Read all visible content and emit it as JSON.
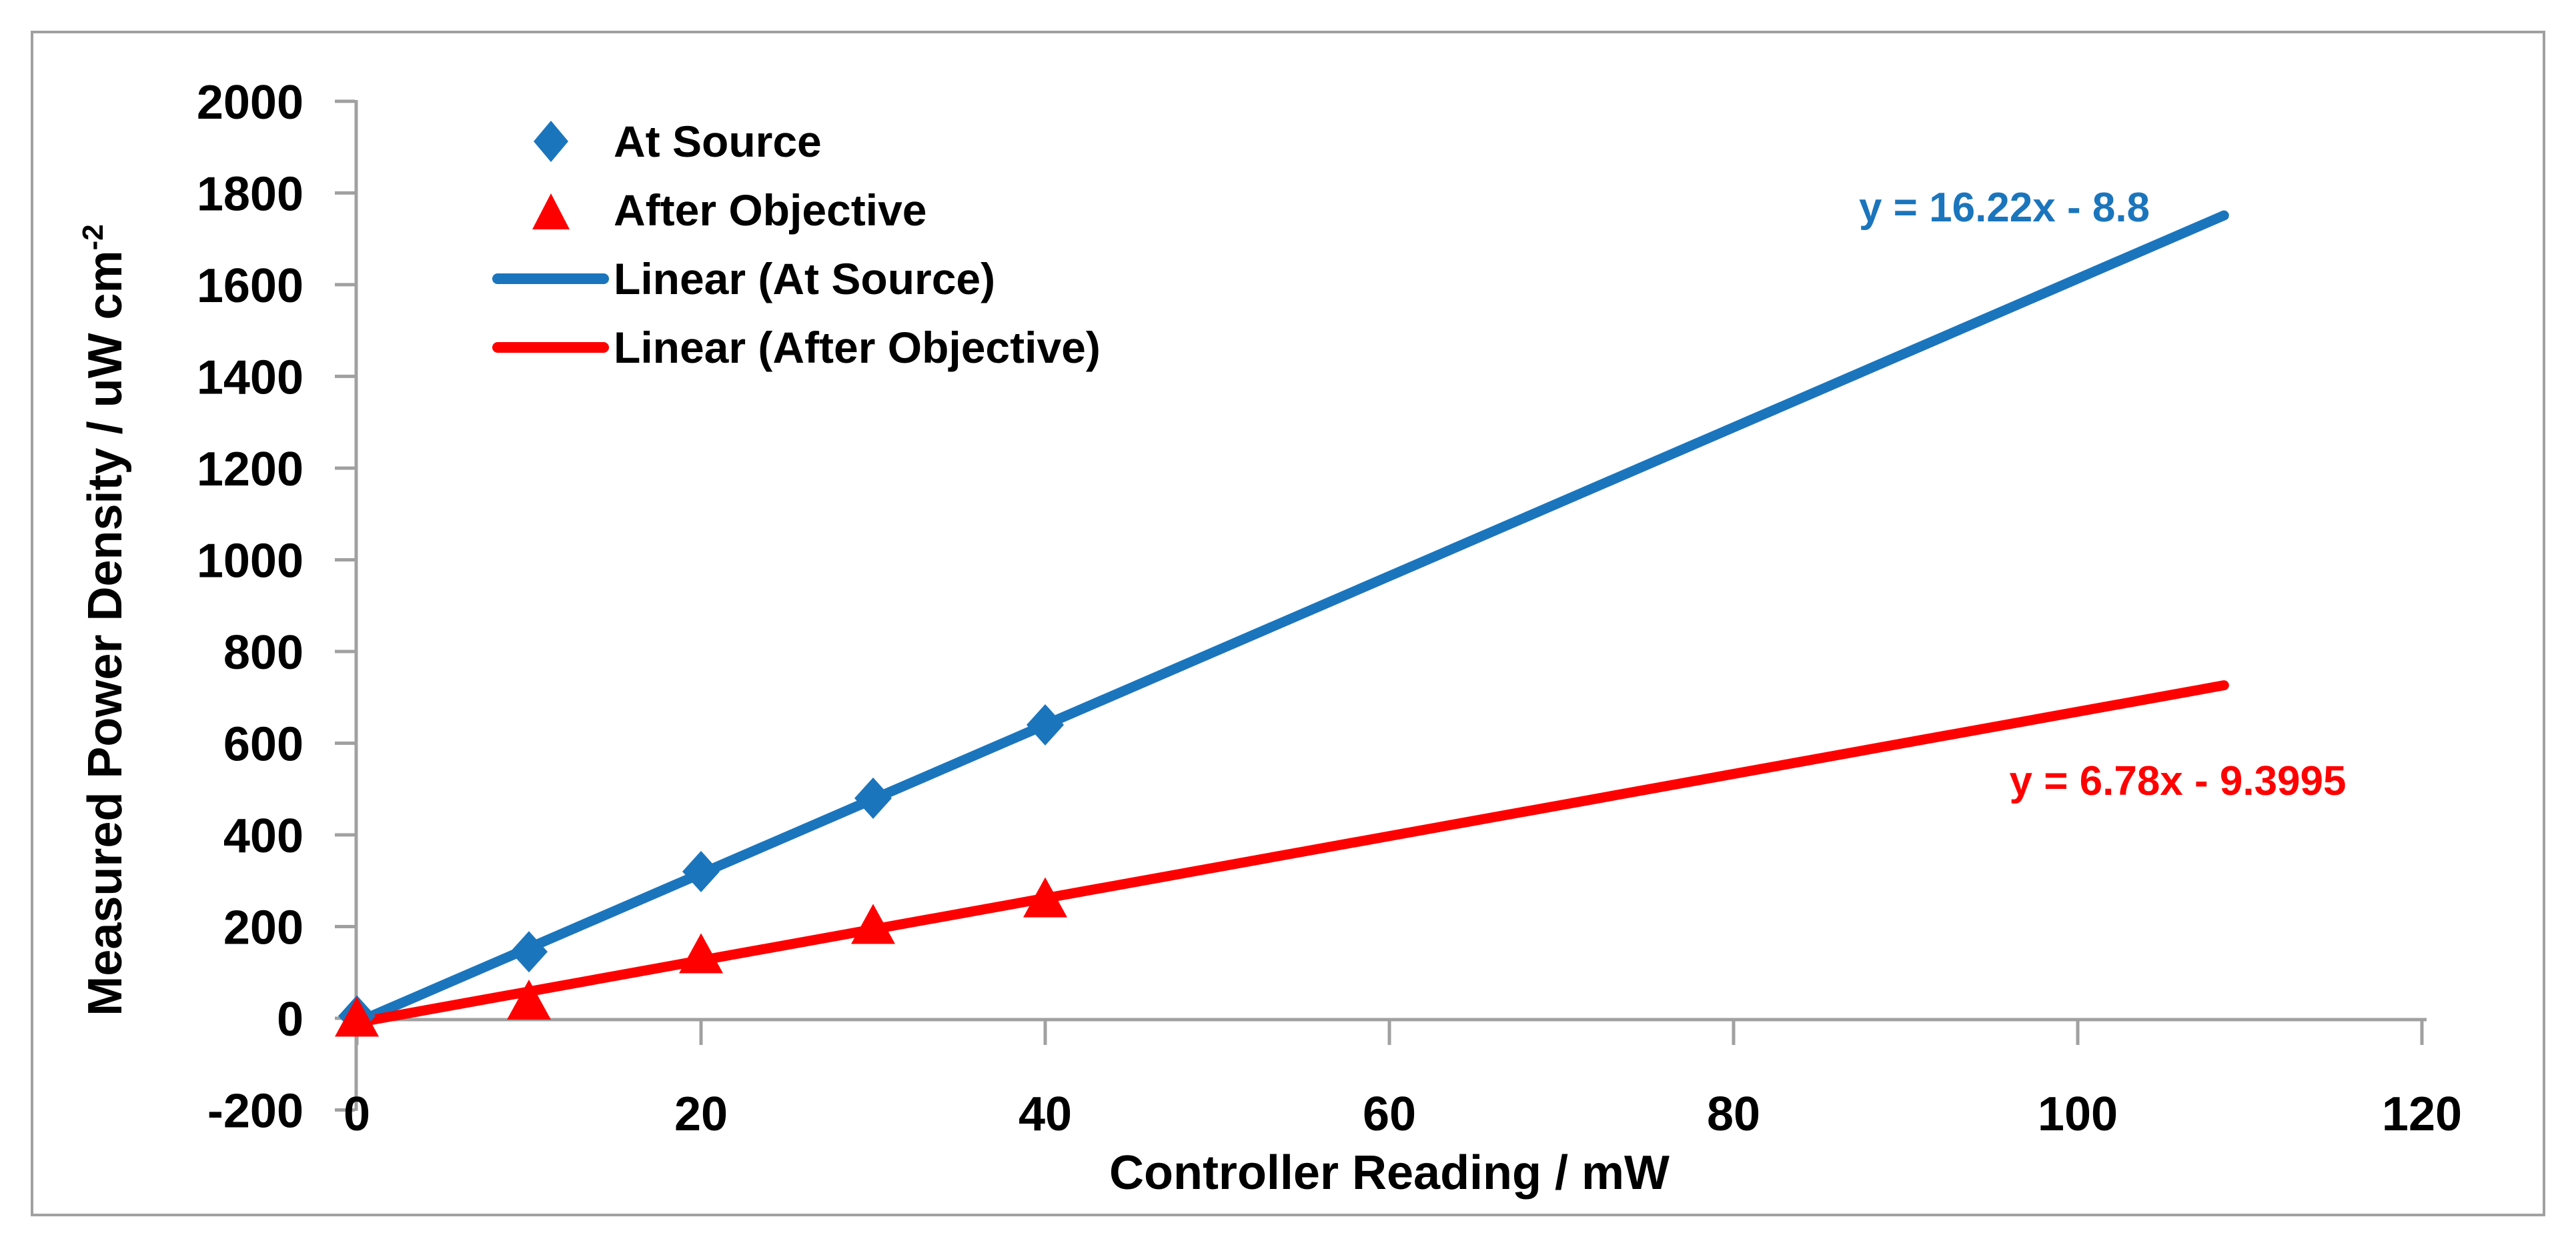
{
  "chart": {
    "x_axis_title": "Controller Reading / mW",
    "y_axis_title_main": "Measured Power Density / uW cm",
    "y_axis_title_sup": "-2",
    "colors": {
      "at_source": "#1B75BC",
      "after_objective": "#FF0000",
      "axis": "#A0A0A0",
      "text": "#000000",
      "background": "#FFFFFF"
    },
    "legend": [
      {
        "label": "At Source",
        "marker": "diamond",
        "series": "at_source"
      },
      {
        "label": "After Objective",
        "marker": "triangle",
        "series": "after_objective"
      },
      {
        "label": "Linear (At Source)",
        "marker": "line",
        "series": "at_source"
      },
      {
        "label": "Linear (After Objective)",
        "marker": "line",
        "series": "after_objective"
      }
    ],
    "annotations": {
      "at_source_equation": "y = 16.22x - 8.8",
      "after_objective_equation": "y = 6.78x - 9.3995"
    }
  },
  "chart_data": {
    "type": "scatter",
    "title": "",
    "xlabel": "Controller Reading / mW",
    "ylabel": "Measured Power Density / uW cm^-2",
    "xlim": [
      0,
      120
    ],
    "ylim": [
      -200,
      2000
    ],
    "x_ticks": [
      0,
      20,
      40,
      60,
      80,
      100,
      120
    ],
    "y_ticks": [
      -200,
      0,
      200,
      400,
      600,
      800,
      1000,
      1200,
      1400,
      1600,
      1800,
      2000
    ],
    "grid": false,
    "legend_position": "upper-left",
    "series": [
      {
        "name": "At Source",
        "marker": "diamond",
        "color": "#1B75BC",
        "x": [
          0,
          10,
          20,
          30,
          40
        ],
        "y": [
          5,
          145,
          320,
          480,
          640
        ],
        "trendline": {
          "type": "linear",
          "slope": 16.22,
          "intercept": -8.8,
          "x_start": 0,
          "x_end": 108.5,
          "equation": "y = 16.22x - 8.8"
        }
      },
      {
        "name": "After Objective",
        "marker": "triangle",
        "color": "#FF0000",
        "x": [
          0,
          10,
          20,
          30,
          40
        ],
        "y": [
          -5,
          32,
          133,
          197,
          255
        ],
        "trendline": {
          "type": "linear",
          "slope": 6.78,
          "intercept": -9.3995,
          "x_start": 0,
          "x_end": 108.5,
          "equation": "y = 6.78x - 9.3995"
        }
      }
    ]
  }
}
